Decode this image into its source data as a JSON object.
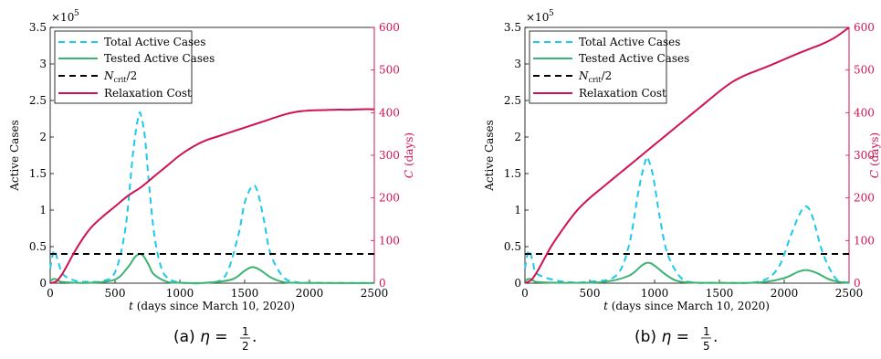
{
  "chart_data": [
    {
      "type": "line",
      "caption": "(a) η = 1/2.",
      "caption_prefix": "(a)",
      "eta_num": "1",
      "eta_den": "2",
      "xlabel": "t (days since March 10, 2020)",
      "ylabel_left": "Active Cases",
      "ylabel_right": "C (days)",
      "exponent": "×10^5",
      "xlim": [
        0,
        2500
      ],
      "ylim_left": [
        0,
        350000
      ],
      "ylim_right": [
        0,
        600
      ],
      "xticks": [
        0,
        500,
        1000,
        1500,
        2000,
        2500
      ],
      "yticks_left": [
        "0",
        "0.5",
        "1",
        "1.5",
        "2",
        "2.5",
        "3",
        "3.5"
      ],
      "yticks_right": [
        0,
        100,
        200,
        300,
        400,
        500,
        600
      ],
      "legend": [
        "Total Active Cases",
        "Tested Active Cases",
        "N_crit/2",
        "Relaxation Cost"
      ],
      "legend_position": "top-left",
      "colors": {
        "total": "#1ec8ea",
        "tested": "#3cb371",
        "ncrit": "#000000",
        "cost": "#d0134e"
      },
      "ncrit_half": 40000,
      "series": [
        {
          "name": "Total Active Cases",
          "axis": "left",
          "style": "dashed",
          "x": [
            0,
            30,
            60,
            100,
            200,
            300,
            400,
            500,
            580,
            640,
            680,
            700,
            730,
            760,
            800,
            850,
            900,
            1000,
            1200,
            1350,
            1450,
            1500,
            1560,
            1600,
            1650,
            1700,
            1800,
            1900,
            2000,
            2500
          ],
          "y": [
            20000,
            45000,
            30000,
            12000,
            3000,
            2000,
            3000,
            15000,
            75000,
            180000,
            228000,
            230000,
            200000,
            140000,
            70000,
            25000,
            8000,
            1000,
            500,
            10000,
            65000,
            110000,
            133000,
            125000,
            85000,
            40000,
            8000,
            1500,
            500,
            200
          ]
        },
        {
          "name": "Tested Active Cases",
          "axis": "left",
          "style": "solid",
          "x": [
            0,
            30,
            60,
            100,
            300,
            500,
            600,
            650,
            690,
            720,
            760,
            800,
            900,
            1000,
            1200,
            1400,
            1500,
            1560,
            1620,
            1700,
            1800,
            1900,
            2000,
            2500
          ],
          "y": [
            3000,
            6000,
            4000,
            1500,
            500,
            5000,
            22000,
            35000,
            40000,
            37000,
            25000,
            12000,
            2000,
            500,
            500,
            5000,
            17000,
            22000,
            18000,
            8000,
            1500,
            500,
            200,
            100
          ]
        },
        {
          "name": "N_crit/2",
          "axis": "left",
          "style": "dashed",
          "x": [
            0,
            2500
          ],
          "y": [
            40000,
            40000
          ]
        },
        {
          "name": "Relaxation Cost",
          "axis": "right",
          "style": "solid",
          "x": [
            0,
            50,
            100,
            200,
            300,
            400,
            500,
            600,
            700,
            800,
            900,
            1000,
            1100,
            1200,
            1300,
            1400,
            1500,
            1600,
            1700,
            1800,
            1900,
            2000,
            2100,
            2200,
            2300,
            2400,
            2500
          ],
          "y": [
            0,
            5,
            25,
            80,
            125,
            155,
            180,
            205,
            225,
            250,
            275,
            300,
            320,
            335,
            345,
            355,
            365,
            375,
            385,
            395,
            402,
            405,
            406,
            407,
            407,
            408,
            408
          ]
        }
      ]
    },
    {
      "type": "line",
      "caption": "(b) η = 1/5.",
      "caption_prefix": "(b)",
      "eta_num": "1",
      "eta_den": "5",
      "xlabel": "t (days since March 10, 2020)",
      "ylabel_left": "Active Cases",
      "ylabel_right": "C (days)",
      "exponent": "×10^5",
      "xlim": [
        0,
        2500
      ],
      "ylim_left": [
        0,
        350000
      ],
      "ylim_right": [
        0,
        600
      ],
      "xticks": [
        0,
        500,
        1000,
        1500,
        2000,
        2500
      ],
      "yticks_left": [
        "0",
        "0.5",
        "1",
        "1.5",
        "2",
        "2.5",
        "3",
        "3.5"
      ],
      "yticks_right": [
        0,
        100,
        200,
        300,
        400,
        500,
        600
      ],
      "legend": [
        "Total Active Cases",
        "Tested Active Cases",
        "N_crit/2",
        "Relaxation Cost"
      ],
      "legend_position": "top-left",
      "colors": {
        "total": "#1ec8ea",
        "tested": "#3cb371",
        "ncrit": "#000000",
        "cost": "#d0134e"
      },
      "ncrit_half": 40000,
      "series": [
        {
          "name": "Total Active Cases",
          "axis": "left",
          "style": "dashed",
          "x": [
            0,
            30,
            60,
            100,
            300,
            500,
            700,
            800,
            880,
            930,
            950,
            990,
            1040,
            1100,
            1200,
            1300,
            1500,
            1800,
            1950,
            2050,
            2120,
            2170,
            2220,
            2300,
            2400,
            2500
          ],
          "y": [
            20000,
            45000,
            30000,
            12000,
            2000,
            2000,
            10000,
            50000,
            130000,
            168000,
            170000,
            145000,
            90000,
            40000,
            8000,
            1000,
            500,
            2000,
            20000,
            65000,
            95000,
            105000,
            90000,
            40000,
            6000,
            1000
          ]
        },
        {
          "name": "Tested Active Cases",
          "axis": "left",
          "style": "solid",
          "x": [
            0,
            30,
            60,
            100,
            300,
            600,
            800,
            900,
            950,
            1000,
            1100,
            1200,
            1400,
            1800,
            2000,
            2100,
            2170,
            2250,
            2350,
            2450,
            2500
          ],
          "y": [
            3000,
            6000,
            4000,
            1500,
            500,
            1500,
            10000,
            24000,
            28000,
            24000,
            10000,
            2000,
            500,
            1000,
            7000,
            15000,
            18000,
            14000,
            5000,
            1000,
            500
          ]
        },
        {
          "name": "N_crit/2",
          "axis": "left",
          "style": "dashed",
          "x": [
            0,
            2500
          ],
          "y": [
            40000,
            40000
          ]
        },
        {
          "name": "Relaxation Cost",
          "axis": "right",
          "style": "solid",
          "x": [
            0,
            50,
            100,
            200,
            300,
            400,
            500,
            600,
            700,
            800,
            900,
            1000,
            1100,
            1200,
            1300,
            1400,
            1500,
            1600,
            1700,
            1800,
            1900,
            2000,
            2100,
            2200,
            2300,
            2400,
            2500
          ],
          "y": [
            0,
            8,
            30,
            85,
            130,
            170,
            200,
            225,
            250,
            275,
            300,
            325,
            350,
            375,
            400,
            425,
            450,
            472,
            488,
            500,
            512,
            525,
            538,
            550,
            562,
            578,
            600
          ]
        }
      ]
    }
  ]
}
